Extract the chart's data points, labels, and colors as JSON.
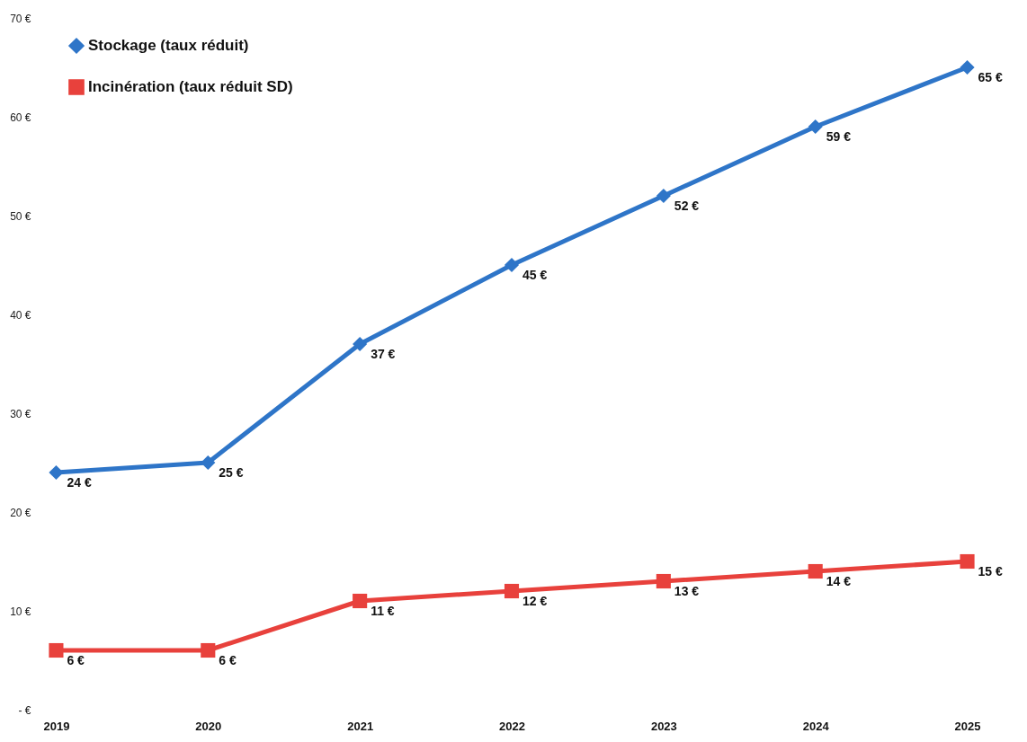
{
  "chart_data": {
    "type": "line",
    "categories": [
      "2019",
      "2020",
      "2021",
      "2022",
      "2023",
      "2024",
      "2025"
    ],
    "series": [
      {
        "name": "Stockage (taux réduit)",
        "color": "#2e75c8",
        "marker": "diamond",
        "values": [
          24,
          25,
          37,
          45,
          52,
          59,
          65
        ],
        "value_labels": [
          "24 €",
          "25 €",
          "37 €",
          "45 €",
          "52 €",
          "59 €",
          "65 €"
        ]
      },
      {
        "name": "Incinération (taux réduit SD)",
        "color": "#e8413c",
        "marker": "square",
        "values": [
          6,
          6,
          11,
          12,
          13,
          14,
          15
        ],
        "value_labels": [
          "6 €",
          "6 €",
          "11 €",
          "12 €",
          "13 €",
          "14 €",
          "15 €"
        ]
      }
    ],
    "ylim": [
      0,
      70
    ],
    "yticks": [
      {
        "value": 0,
        "label": "- €"
      },
      {
        "value": 10,
        "label": "10 €"
      },
      {
        "value": 20,
        "label": "20 €"
      },
      {
        "value": 30,
        "label": "30 €"
      },
      {
        "value": 40,
        "label": "40 €"
      },
      {
        "value": 50,
        "label": "50 €"
      },
      {
        "value": 60,
        "label": "60 €"
      },
      {
        "value": 70,
        "label": "70 €"
      }
    ],
    "grid": false,
    "legend": "top left"
  }
}
